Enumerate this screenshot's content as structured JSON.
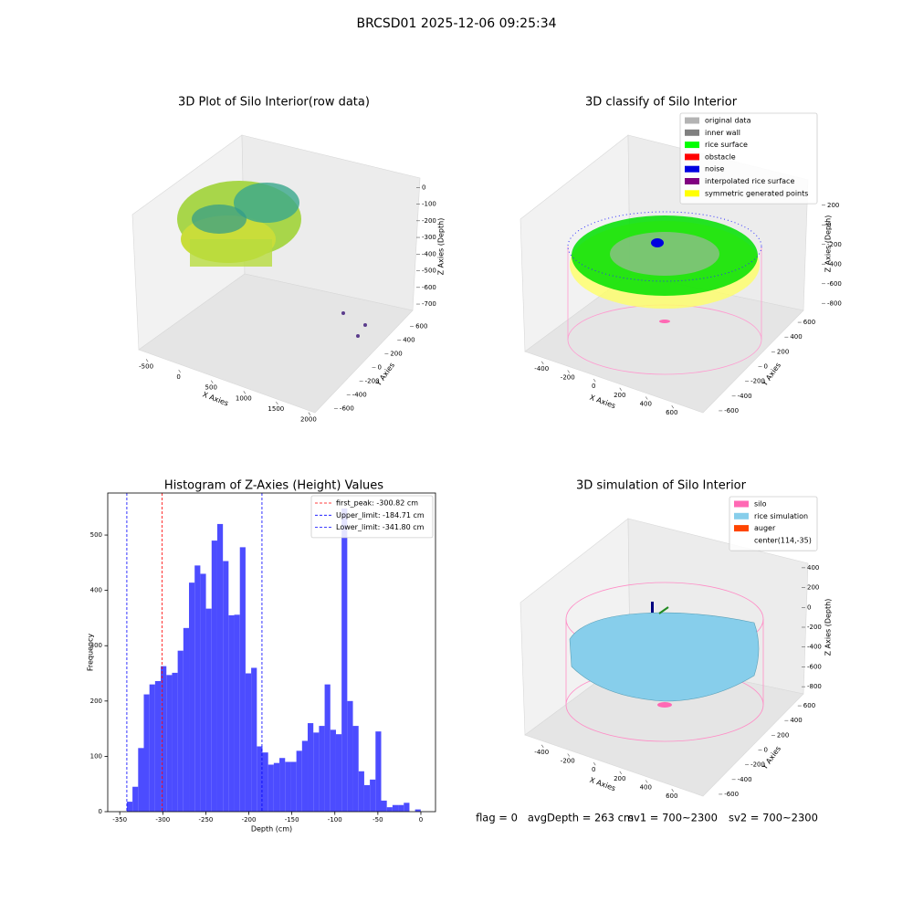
{
  "title": "BRCSD01 2025-12-06 09:25:34",
  "status": [
    "flag = 0",
    "avgDepth = 263 cm",
    "sv1 = 700~2300",
    "sv2 = 700~2300"
  ],
  "chart_data": [
    {
      "type": "scatter3d",
      "title": "3D Plot of Silo Interior(row data)",
      "xlabel": "X Axies",
      "ylabel": "Y Axies",
      "zlabel": "Z Axies (Depth)",
      "xlim": [
        -600,
        2100
      ],
      "xticks": [
        -500,
        0,
        500,
        1000,
        1500,
        2000
      ],
      "ylim": [
        -700,
        700
      ],
      "yticks": [
        -600,
        -400,
        -200,
        0,
        200,
        400,
        600
      ],
      "zlim": [
        -760,
        40
      ],
      "zticks": [
        0,
        -100,
        -200,
        -300,
        -400,
        -500,
        -600,
        -700
      ]
    },
    {
      "type": "scatter3d",
      "title": "3D classify of Silo Interior",
      "xlabel": "X Axies",
      "ylabel": "Y Axies",
      "zlabel": "Z Axies (Depth)",
      "xlim": [
        -500,
        700
      ],
      "xticks": [
        -400,
        -200,
        0,
        200,
        400,
        600
      ],
      "ylim": [
        -700,
        700
      ],
      "yticks": [
        -600,
        -400,
        -200,
        0,
        200,
        400,
        600
      ],
      "zlim": [
        -900,
        300
      ],
      "zticks": [
        200,
        0,
        -200,
        -400,
        -600,
        -800
      ],
      "series": [
        {
          "name": "original data",
          "color": "#b3b3b3"
        },
        {
          "name": "inner wall",
          "color": "#808080"
        },
        {
          "name": "rice surface",
          "color": "#00ff00"
        },
        {
          "name": "obstacle",
          "color": "#ff0000"
        },
        {
          "name": "noise",
          "color": "#0000e0"
        },
        {
          "name": "interpolated rice surface",
          "color": "#800080"
        },
        {
          "name": "symmetric generated points",
          "color": "#ffff00"
        }
      ]
    },
    {
      "type": "histogram",
      "title": "Histogram of Z-Axies (Height) Values",
      "xlabel": "Depth (cm)",
      "ylabel": "Frequency",
      "color": "#4c4cff",
      "bins": [
        -341.8,
        -335.23,
        -328.66,
        -322.09,
        -315.52,
        -308.95,
        -302.38,
        -295.81,
        -289.24,
        -282.67,
        -276.1,
        -269.53,
        -262.96,
        -256.39,
        -249.82,
        -243.25,
        -236.68,
        -230.11,
        -223.54,
        -216.97,
        -210.4,
        -203.83,
        -197.26,
        -190.69,
        -184.12,
        -177.55,
        -170.98,
        -164.41,
        -157.84,
        -151.27,
        -144.7,
        -138.13,
        -131.56,
        -124.99,
        -118.42,
        -111.85,
        -105.28,
        -98.71,
        -92.14,
        -85.57,
        -79.0,
        -72.43,
        -65.86,
        -59.29,
        -52.72,
        -46.15,
        -39.58,
        -33.01,
        -26.44,
        -19.87,
        -13.3,
        -6.73,
        -0.16
      ],
      "counts": [
        18,
        45,
        115,
        212,
        230,
        236,
        263,
        247,
        251,
        291,
        332,
        414,
        445,
        430,
        367,
        490,
        520,
        453,
        355,
        356,
        478,
        250,
        260,
        118,
        107,
        85,
        88,
        97,
        90,
        90,
        110,
        128,
        160,
        143,
        155,
        230,
        148,
        140,
        548,
        200,
        155,
        73,
        48,
        58,
        145,
        20,
        8,
        12,
        12,
        16,
        0,
        4
      ],
      "xlim": [
        -364,
        17
      ],
      "xticks": [
        -350,
        -300,
        -250,
        -200,
        -150,
        -100,
        -50,
        0
      ],
      "ylim": [
        0,
        576
      ],
      "yticks": [
        0,
        100,
        200,
        300,
        400,
        500
      ],
      "lines": [
        {
          "name": "first_peak: -300.82 cm",
          "value": -300.82,
          "color": "#ff0000"
        },
        {
          "name": "Upper_limit: -184.71 cm",
          "value": -184.71,
          "color": "#0000ff"
        },
        {
          "name": "Lower_limit: -341.80 cm",
          "value": -341.8,
          "color": "#0000ff"
        }
      ]
    },
    {
      "type": "surface3d",
      "title": "3D simulation of Silo Interior",
      "xlabel": "X Axies",
      "ylabel": "Y Axies",
      "zlabel": "Z Axies (Depth)",
      "xlim": [
        -500,
        700
      ],
      "xticks": [
        -400,
        -200,
        0,
        200,
        400,
        600
      ],
      "ylim": [
        -700,
        700
      ],
      "yticks": [
        -600,
        -400,
        -200,
        0,
        200,
        400,
        600
      ],
      "zlim": [
        -900,
        500
      ],
      "zticks": [
        400,
        200,
        0,
        -200,
        -400,
        -600,
        -800
      ],
      "series": [
        {
          "name": "silo",
          "color": "#ff69b4"
        },
        {
          "name": "rice simulation",
          "color": "#87ceeb"
        },
        {
          "name": "auger",
          "color": "#ff4500"
        },
        {
          "name": "center(114,-35)"
        }
      ]
    }
  ]
}
